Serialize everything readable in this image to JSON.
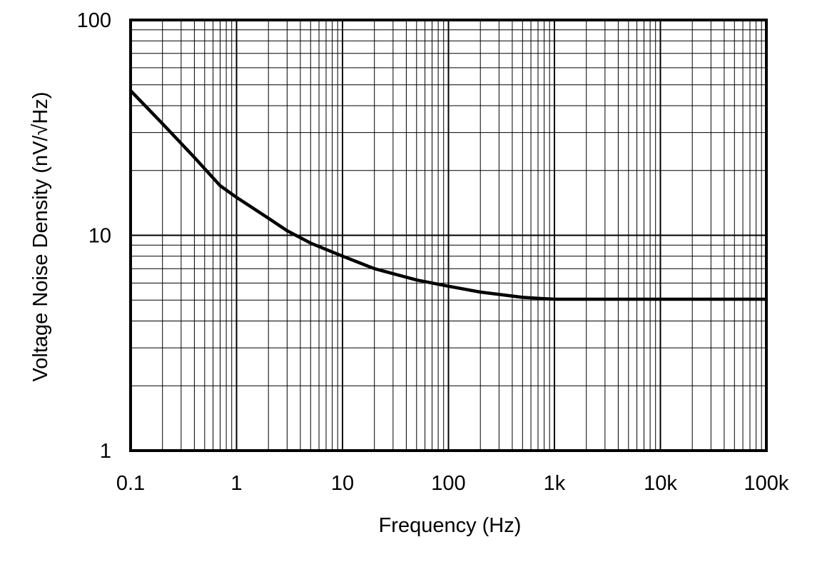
{
  "chart_data": {
    "type": "line",
    "xlabel": "Frequency (Hz)",
    "ylabel": "Voltage Noise Density (nV/√Hz)",
    "xscale": "log",
    "yscale": "log",
    "xlim": [
      0.1,
      100000
    ],
    "ylim": [
      1,
      100
    ],
    "grid": true,
    "x_ticks": [
      {
        "value": 0.1,
        "label": "0.1"
      },
      {
        "value": 1,
        "label": "1"
      },
      {
        "value": 10,
        "label": "10"
      },
      {
        "value": 100,
        "label": "100"
      },
      {
        "value": 1000,
        "label": "1k"
      },
      {
        "value": 10000,
        "label": "10k"
      },
      {
        "value": 100000,
        "label": "100k"
      }
    ],
    "y_ticks": [
      {
        "value": 1,
        "label": "1"
      },
      {
        "value": 10,
        "label": "10"
      },
      {
        "value": 100,
        "label": "100"
      }
    ],
    "series": [
      {
        "color": "#000000",
        "x": [
          0.1,
          0.2,
          0.4,
          0.7,
          1,
          2,
          3,
          5,
          10,
          20,
          50,
          100,
          200,
          500,
          700,
          1000,
          10000,
          100000
        ],
        "y": [
          47,
          33,
          23,
          17,
          15,
          12,
          10.5,
          9.2,
          8.0,
          7.0,
          6.2,
          5.8,
          5.45,
          5.15,
          5.1,
          5.05,
          5.05,
          5.05
        ]
      }
    ]
  }
}
